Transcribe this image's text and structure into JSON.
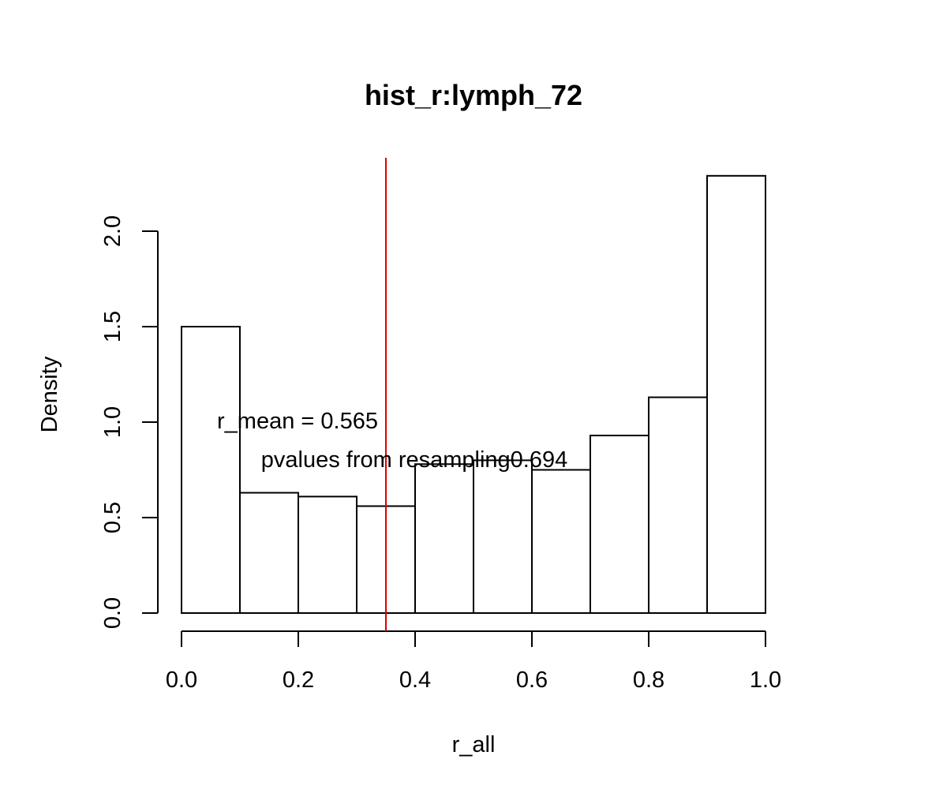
{
  "chart_data": {
    "type": "bar",
    "title": "hist_r:lymph_72",
    "xlabel": "r_all",
    "ylabel": "Density",
    "xlim": [
      0,
      1
    ],
    "ylim": [
      0,
      2.0
    ],
    "bin_edges": [
      0.0,
      0.1,
      0.2,
      0.3,
      0.4,
      0.5,
      0.6,
      0.7,
      0.8,
      0.9,
      1.0
    ],
    "values": [
      1.5,
      0.63,
      0.61,
      0.56,
      0.78,
      0.8,
      0.75,
      0.93,
      1.13,
      2.29
    ],
    "x_ticks": [
      "0.0",
      "0.2",
      "0.4",
      "0.6",
      "0.8",
      "1.0"
    ],
    "y_ticks": [
      "0.0",
      "0.5",
      "1.0",
      "1.5",
      "2.0"
    ],
    "vline": {
      "x": 0.35,
      "color": "#e00000"
    },
    "annotations": [
      "r_mean = 0.565",
      "pvalues from resampling0.694"
    ],
    "grid": false
  }
}
